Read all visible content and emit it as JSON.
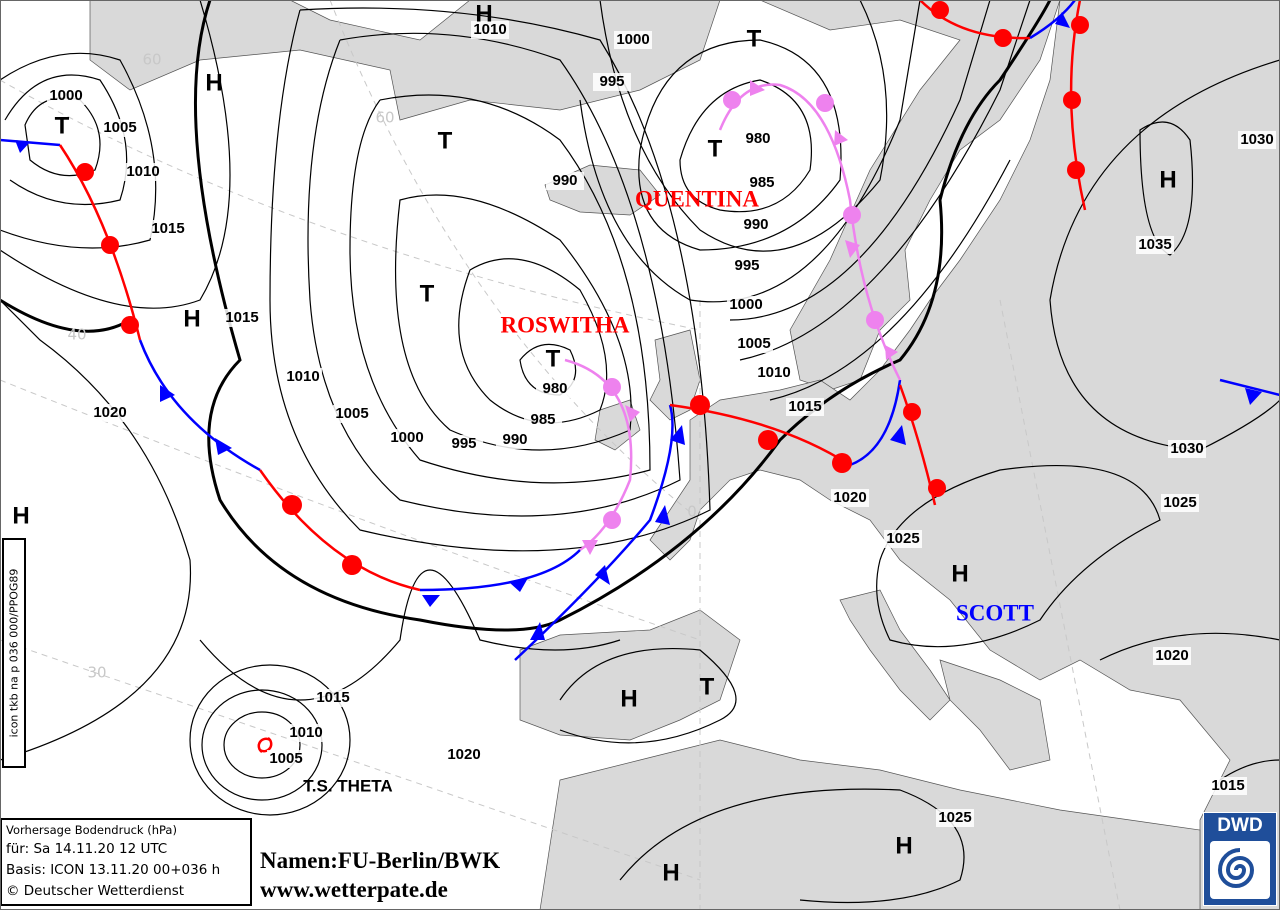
{
  "map_title": "Vorhersage Bodendruck (hPa)",
  "legend": {
    "title": "Vorhersage Bodendruck (hPa)",
    "valid": "für:  Sa 14.11.20  12 UTC",
    "basis": "Basis: ICON  13.11.20 00+036 h",
    "copyright": "© Deutscher Wetterdienst"
  },
  "product_code": "icon tkb na p 036 000/PPOG89",
  "credits": {
    "names": "Namen:FU-Berlin/BWK",
    "url": "www.wetterpate.de"
  },
  "logo": "DWD",
  "colors": {
    "land": "#d9d9d9",
    "sea": "#ffffff",
    "cold_front": "#0000ff",
    "warm_front": "#ff0000",
    "occlusion": "#ee82ee",
    "isobar": "#000000",
    "grid": "#c8c8c8"
  },
  "isobar_labels": [
    "1010",
    "1000",
    "995",
    "1000",
    "1005",
    "1010",
    "1015",
    "1015",
    "990",
    "980",
    "985",
    "990",
    "995",
    "1000",
    "1005",
    "1010",
    "1015",
    "1010",
    "1005",
    "1000",
    "995",
    "990",
    "985",
    "980",
    "1020",
    "1020",
    "1025",
    "1030",
    "1025",
    "1030",
    "1035",
    "1020",
    "1015",
    "1010",
    "1005",
    "1020",
    "1025",
    "1015"
  ],
  "pressure_centers": [
    "H",
    "T",
    "H",
    "T",
    "T",
    "T",
    "H",
    "T",
    "H",
    "T",
    "H",
    "H",
    "H",
    "T",
    "H",
    "H"
  ],
  "system_names": [
    {
      "name": "QUENTINA",
      "color": "#ff0000"
    },
    {
      "name": "ROSWITHA",
      "color": "#ff0000"
    },
    {
      "name": "SCOTT",
      "color": "#0000ff"
    },
    {
      "name": "T.S. THETA",
      "color": "#000000"
    }
  ],
  "latitude_labels": [
    "60",
    "60",
    "40",
    "30",
    "0"
  ]
}
